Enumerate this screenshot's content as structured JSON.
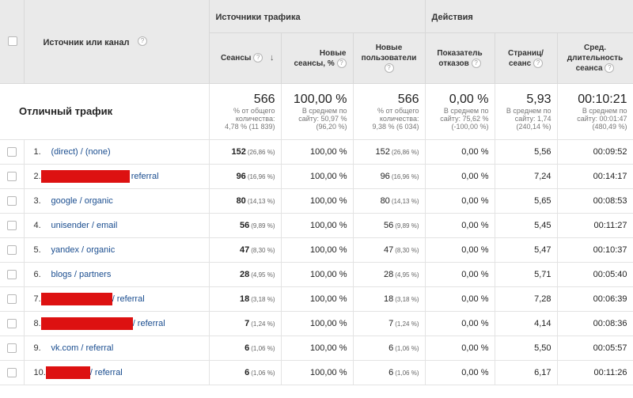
{
  "header": {
    "group_sources": "Источники трафика",
    "group_actions": "Действия",
    "source_column": "Источник или канал",
    "columns": {
      "sessions": "Сеансы",
      "new_sessions": "Новые сеансы, %",
      "new_users": "Новые пользователи",
      "bounce_rate": "Показатель отказов",
      "pages_per_session": "Страниц/ сеанс",
      "avg_duration": "Сред. длительность сеанса"
    },
    "help_glyph": "?",
    "sort_arrow": "↓"
  },
  "totals": {
    "label": "Отличный трафик",
    "sessions": {
      "value": "566",
      "line1": "% от общего",
      "line2": "количества:",
      "line3": "4,78 % (11 839)"
    },
    "new_sessions": {
      "value": "100,00 %",
      "line1": "В среднем по",
      "line2": "сайту: 50,97 %",
      "line3": "(96,20 %)"
    },
    "new_users": {
      "value": "566",
      "line1": "% от общего",
      "line2": "количества:",
      "line3": "9,38 % (6 034)"
    },
    "bounce_rate": {
      "value": "0,00 %",
      "line1": "В среднем по",
      "line2": "сайту: 75,62 %",
      "line3": "(-100,00 %)"
    },
    "pages_per_session": {
      "value": "5,93",
      "line1": "В среднем по",
      "line2": "сайту: 1,74",
      "line3": "(240,14 %)"
    },
    "avg_duration": {
      "value": "00:10:21",
      "line1": "В среднем по",
      "line2": "сайту: 00:01:47",
      "line3": "(480,49 %)"
    }
  },
  "rows": [
    {
      "num": "1.",
      "source": "(direct) / (none)",
      "sessions": "152",
      "sessions_pct": "(26,86 %)",
      "new_sessions": "100,00 %",
      "new_users": "152",
      "new_users_pct": "(26,86 %)",
      "bounce": "0,00 %",
      "pages": "5,56",
      "duration": "00:09:52"
    },
    {
      "num": "2.",
      "source": "referral",
      "sessions": "96",
      "sessions_pct": "(16,96 %)",
      "new_sessions": "100,00 %",
      "new_users": "96",
      "new_users_pct": "(16,96 %)",
      "bounce": "0,00 %",
      "pages": "7,24",
      "duration": "00:14:17"
    },
    {
      "num": "3.",
      "source": "google / organic",
      "sessions": "80",
      "sessions_pct": "(14,13 %)",
      "new_sessions": "100,00 %",
      "new_users": "80",
      "new_users_pct": "(14,13 %)",
      "bounce": "0,00 %",
      "pages": "5,65",
      "duration": "00:08:53"
    },
    {
      "num": "4.",
      "source": "unisender / email",
      "sessions": "56",
      "sessions_pct": "(9,89 %)",
      "new_sessions": "100,00 %",
      "new_users": "56",
      "new_users_pct": "(9,89 %)",
      "bounce": "0,00 %",
      "pages": "5,45",
      "duration": "00:11:27"
    },
    {
      "num": "5.",
      "source": "yandex / organic",
      "sessions": "47",
      "sessions_pct": "(8,30 %)",
      "new_sessions": "100,00 %",
      "new_users": "47",
      "new_users_pct": "(8,30 %)",
      "bounce": "0,00 %",
      "pages": "5,47",
      "duration": "00:10:37"
    },
    {
      "num": "6.",
      "source": "blogs / partners",
      "sessions": "28",
      "sessions_pct": "(4,95 %)",
      "new_sessions": "100,00 %",
      "new_users": "28",
      "new_users_pct": "(4,95 %)",
      "bounce": "0,00 %",
      "pages": "5,71",
      "duration": "00:05:40"
    },
    {
      "num": "7.",
      "source": "/ referral",
      "sessions": "18",
      "sessions_pct": "(3,18 %)",
      "new_sessions": "100,00 %",
      "new_users": "18",
      "new_users_pct": "(3,18 %)",
      "bounce": "0,00 %",
      "pages": "7,28",
      "duration": "00:06:39"
    },
    {
      "num": "8.",
      "source": "/ referral",
      "sessions": "7",
      "sessions_pct": "(1,24 %)",
      "new_sessions": "100,00 %",
      "new_users": "7",
      "new_users_pct": "(1,24 %)",
      "bounce": "0,00 %",
      "pages": "4,14",
      "duration": "00:08:36"
    },
    {
      "num": "9.",
      "source": "vk.com / referral",
      "sessions": "6",
      "sessions_pct": "(1,06 %)",
      "new_sessions": "100,00 %",
      "new_users": "6",
      "new_users_pct": "(1,06 %)",
      "bounce": "0,00 %",
      "pages": "5,50",
      "duration": "00:05:57"
    },
    {
      "num": "10.",
      "source": "/ referral",
      "sessions": "6",
      "sessions_pct": "(1,06 %)",
      "new_sessions": "100,00 %",
      "new_users": "6",
      "new_users_pct": "(1,06 %)",
      "bounce": "0,00 %",
      "pages": "6,17",
      "duration": "00:11:26"
    }
  ],
  "colors": {
    "link": "#1a4d8f",
    "redaction": "#dd1111",
    "header_bg": "#eaeaea"
  }
}
